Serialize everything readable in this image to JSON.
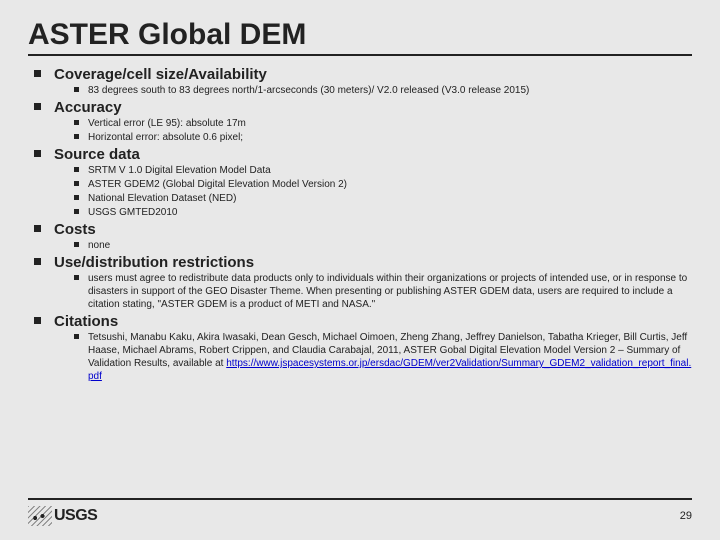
{
  "title": "ASTER Global DEM",
  "sections": [
    {
      "heading": "Coverage/cell size/Availability",
      "items": [
        "83 degrees south to 83 degrees north/1-arcseconds (30 meters)/ V2.0 released (V3.0 release 2015)"
      ]
    },
    {
      "heading": "Accuracy",
      "items": [
        "Vertical error (LE 95): absolute 17m",
        "Horizontal error: absolute 0.6 pixel;"
      ]
    },
    {
      "heading": "Source data",
      "items": [
        "SRTM V 1.0 Digital Elevation Model Data",
        "ASTER GDEM2 (Global Digital Elevation Model Version 2)",
        "National Elevation Dataset (NED)",
        "USGS GMTED2010"
      ]
    },
    {
      "heading": "Costs",
      "items": [
        "none"
      ]
    },
    {
      "heading": "Use/distribution restrictions",
      "items": [
        "users must agree to redistribute data products only to individuals within their organizations or projects of intended use, or in response to disasters in support of the GEO Disaster Theme. When presenting or publishing ASTER GDEM data, users are required to include a citation stating, \"ASTER GDEM is a product of METI and NASA.\""
      ]
    },
    {
      "heading": "Citations",
      "items": [
        {
          "text": "Tetsushi, Manabu Kaku, Akira Iwasaki,  Dean Gesch, Michael Oimoen, Zheng Zhang, Jeffrey Danielson, Tabatha Krieger, Bill Curtis, Jeff Haase,  Michael Abrams, Robert Crippen,  and Claudia Carabajal, 2011, ASTER Gobal Digital Elevation Model Version 2 – Summary of Validation Results, available at ",
          "link": "https://www.jspacesystems.or.jp/ersdac/GDEM/ver2Validation/Summary_GDEM2_validation_report_final.pdf"
        }
      ]
    }
  ],
  "logo_text": "USGS",
  "page_number": "29",
  "link_color": "#0000cc",
  "background_color": "#e8e8e8"
}
